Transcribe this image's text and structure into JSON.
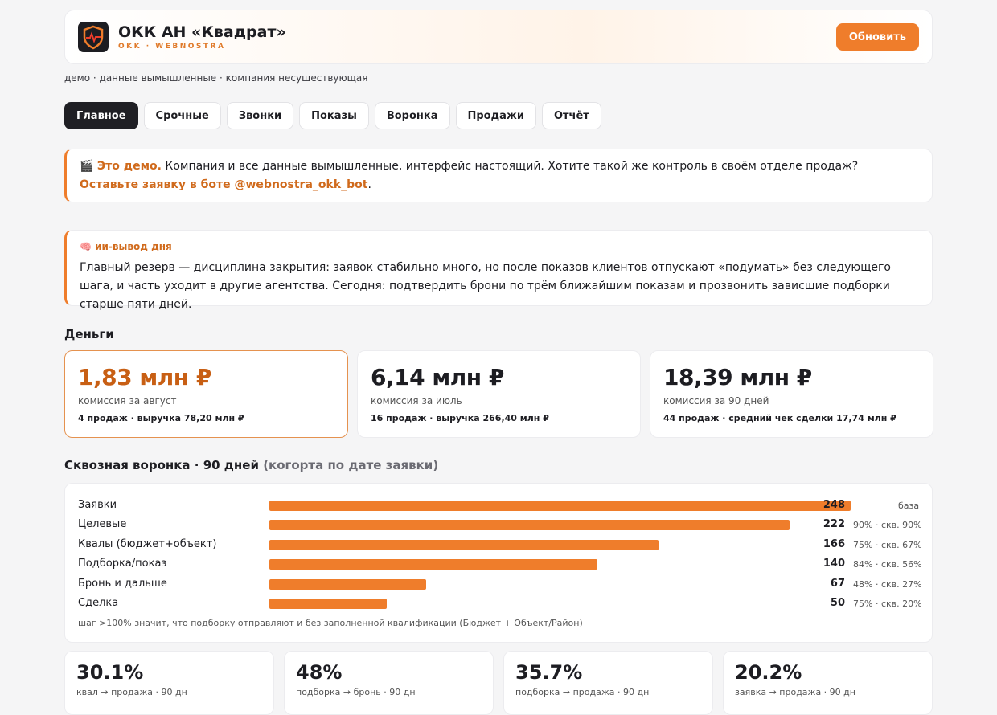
{
  "header": {
    "title": "ОКК АН «Квадрат»",
    "subtitle": "OKK · WEBNOSTRA",
    "button": "Обновить"
  },
  "note": "демо · данные вымышленные · компания несуществующая",
  "tabs": [
    "Главное",
    "Срочные",
    "Звонки",
    "Показы",
    "Воронка",
    "Продажи",
    "Отчёт"
  ],
  "demo": {
    "icon": "🎬",
    "lead": "Это демо.",
    "text": "Компания и все данные вымышленные, интерфейс настоящий. Хотите такой же контроль в своём отделе продаж?",
    "link": "Оставьте заявку в боте @webnostra_okk_bot",
    "end": "."
  },
  "insight": {
    "title": "🧠 ии-вывод дня",
    "text": "Главный резерв — дисциплина закрытия: заявок стабильно много, но после показов клиентов отпускают «подумать» без следующего шага, и часть уходит в другие агентства. Сегодня: подтвердить брони по трём ближайшим показам и прозвонить зависшие подборки старше пяти дней."
  },
  "money": {
    "title": "Деньги",
    "cards": [
      {
        "value": "1,83 млн ₽",
        "label": "комиссия за август",
        "detail": "4 продаж · выручка 78,20 млн ₽"
      },
      {
        "value": "6,14 млн ₽",
        "label": "комиссия за июль",
        "detail": "16 продаж · выручка 266,40 млн ₽"
      },
      {
        "value": "18,39 млн ₽",
        "label": "комиссия за 90 дней",
        "detail": "44 продаж · средний чек сделки 17,74 млн ₽"
      }
    ]
  },
  "funnel": {
    "title": "Сквозная воронка · 90 дней",
    "subtitle": "(когорта по дате заявки)",
    "rows": [
      {
        "label": "Заявки",
        "value": 248,
        "note": "база"
      },
      {
        "label": "Целевые",
        "value": 222,
        "note": "90% · скв. 90%"
      },
      {
        "label": "Квалы (бюджет+объект)",
        "value": 166,
        "note": "75% · скв. 67%"
      },
      {
        "label": "Подборка/показ",
        "value": 140,
        "note": "84% · скв. 56%"
      },
      {
        "label": "Бронь и дальше",
        "value": 67,
        "note": "48% · скв. 27%"
      },
      {
        "label": "Сделка",
        "value": 50,
        "note": "75% · скв. 20%"
      }
    ],
    "footnote": "шаг >100% значит, что подборку отправляют и без заполненной квалификации (Бюджет + Объект/Район)"
  },
  "kpis": [
    {
      "value": "30.1%",
      "label": "квал → продажа · 90 дн"
    },
    {
      "value": "48%",
      "label": "подборка → бронь · 90 дн"
    },
    {
      "value": "35.7%",
      "label": "подборка → продажа · 90 дн"
    },
    {
      "value": "20.2%",
      "label": "заявка → продажа · 90 дн"
    }
  ]
}
